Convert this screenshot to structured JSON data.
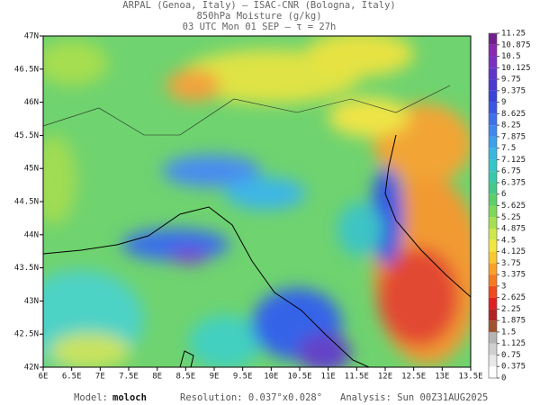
{
  "header": {
    "line1": "ARPAL (Genoa, Italy)  –  ISAC-CNR (Bologna, Italy)",
    "line2": "850hPa Moisture (g/kg)",
    "line3": "03 UTC Mon 01 SEP  –  τ = 27h"
  },
  "map": {
    "lonlim": [
      6,
      13.5
    ],
    "latlim": [
      42,
      47
    ],
    "lon_ticks": [
      {
        "value": 6,
        "label": "6E"
      },
      {
        "value": 6.5,
        "label": "6.5E"
      },
      {
        "value": 7,
        "label": "7E"
      },
      {
        "value": 7.5,
        "label": "7.5E"
      },
      {
        "value": 8,
        "label": "8E"
      },
      {
        "value": 8.5,
        "label": "8.5E"
      },
      {
        "value": 9,
        "label": "9E"
      },
      {
        "value": 9.5,
        "label": "9.5E"
      },
      {
        "value": 10,
        "label": "10E"
      },
      {
        "value": 10.5,
        "label": "10.5E"
      },
      {
        "value": 11,
        "label": "11E"
      },
      {
        "value": 11.5,
        "label": "11.5E"
      },
      {
        "value": 12,
        "label": "12E"
      },
      {
        "value": 12.5,
        "label": "12.5E"
      },
      {
        "value": 13,
        "label": "13E"
      },
      {
        "value": 13.5,
        "label": "13.5E"
      }
    ],
    "lat_ticks": [
      {
        "value": 42,
        "label": "42N"
      },
      {
        "value": 42.5,
        "label": "42.5N"
      },
      {
        "value": 43,
        "label": "43N"
      },
      {
        "value": 43.5,
        "label": "43.5N"
      },
      {
        "value": 44,
        "label": "44N"
      },
      {
        "value": 44.5,
        "label": "44.5N"
      },
      {
        "value": 45,
        "label": "45N"
      },
      {
        "value": 45.5,
        "label": "45.5N"
      },
      {
        "value": 46,
        "label": "46N"
      },
      {
        "value": 46.5,
        "label": "46.5N"
      },
      {
        "value": 47,
        "label": "47N"
      }
    ]
  },
  "colorbar": {
    "levels": [
      0,
      0.375,
      0.75,
      1.125,
      1.5,
      1.875,
      2.25,
      2.625,
      3,
      3.375,
      3.75,
      4.125,
      4.5,
      4.875,
      5.25,
      5.625,
      6,
      6.375,
      6.75,
      7.125,
      7.5,
      7.875,
      8.25,
      8.625,
      9,
      9.375,
      9.75,
      10.125,
      10.5,
      10.875,
      11.25
    ],
    "colors": [
      "#ffffff",
      "#e8e8e8",
      "#cfcfcf",
      "#b5b5b5",
      "#a0522d",
      "#b22222",
      "#e02020",
      "#f04a1e",
      "#f57a20",
      "#f8a028",
      "#f8c830",
      "#f0e640",
      "#cce84a",
      "#a6e050",
      "#7ed85a",
      "#5ccf6a",
      "#44c98a",
      "#3ac8aa",
      "#36c6c8",
      "#38b8e0",
      "#3ea0ea",
      "#4088ee",
      "#3f70ec",
      "#3a58e4",
      "#3a44d8",
      "#4a3ad0",
      "#6036c8",
      "#7830c0",
      "#8a28b0",
      "#70208c"
    ]
  },
  "footer": {
    "model_label": "Model:",
    "model": "moloch",
    "resolution": "Resolution: 0.037°x0.028°",
    "analysis": "Analysis: Sun 00Z31AUG2025"
  }
}
